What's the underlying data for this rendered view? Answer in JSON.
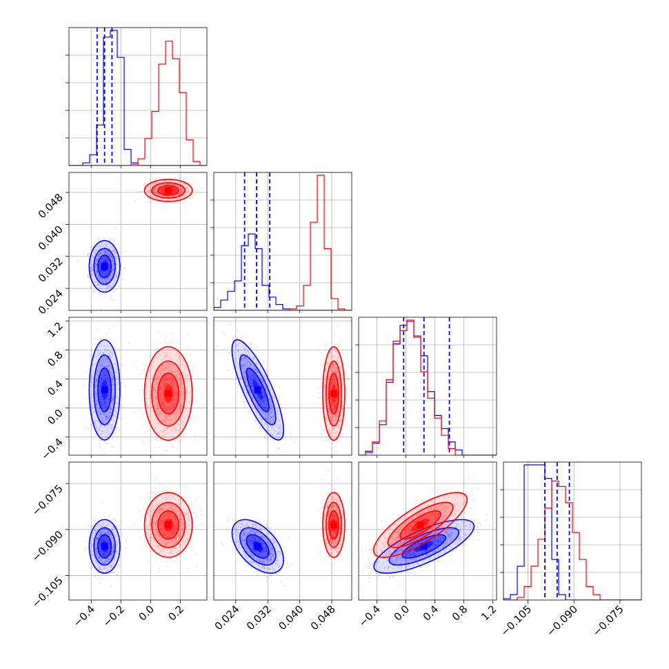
{
  "colors": {
    "series_a": "#0000ff",
    "series_b": "#ff0000",
    "grid": "#b0b0b0"
  },
  "chart_data": {
    "type": "corner",
    "grid": true,
    "parameters": [
      {
        "range": [
          -0.55,
          0.38
        ],
        "ticks": [
          -0.4,
          -0.2,
          0.0,
          0.2
        ],
        "tick_labels": [
          "−0.4",
          "−0.2",
          "0.0",
          "0.2"
        ]
      },
      {
        "range": [
          0.0185,
          0.053
        ],
        "ticks": [
          0.024,
          0.032,
          0.04,
          0.048
        ],
        "tick_labels": [
          "0.024",
          "0.032",
          "0.040",
          "0.048"
        ]
      },
      {
        "range": [
          -0.65,
          1.25
        ],
        "ticks": [
          -0.4,
          0.0,
          0.4,
          0.8,
          1.2
        ],
        "tick_labels": [
          "−0.4",
          "0.0",
          "0.4",
          "0.8",
          "1.2"
        ]
      },
      {
        "range": [
          -0.113,
          -0.068
        ],
        "ticks": [
          -0.105,
          -0.09,
          -0.075
        ],
        "tick_labels": [
          "−0.105",
          "−0.090",
          "−0.075"
        ]
      }
    ],
    "series": [
      {
        "color": "#0000ff",
        "mean": [
          -0.31,
          0.0295,
          0.25,
          -0.0955
        ],
        "std": [
          0.045,
          0.0028,
          0.3,
          0.0038
        ],
        "quantiles": [
          [
            -0.36,
            -0.31,
            -0.26
          ],
          [
            0.0262,
            0.0292,
            0.0325
          ],
          [
            -0.03,
            0.25,
            0.6
          ],
          [
            -0.0995,
            -0.0955,
            -0.0915
          ]
        ],
        "correlations": {
          "0-1": 0.0,
          "0-2": 0.0,
          "0-3": 0.0,
          "1-2": -0.8,
          "1-3": -0.5,
          "2-3": 0.75
        }
      },
      {
        "color": "#ff0000",
        "mean": [
          0.12,
          0.0485,
          0.2,
          -0.0885
        ],
        "std": [
          0.07,
          0.0012,
          0.28,
          0.0046
        ],
        "correlations": {
          "0-1": 0.0,
          "0-2": 0.0,
          "0-3": 0.0,
          "1-2": 0.0,
          "1-3": 0.0,
          "2-3": 0.78
        }
      }
    ],
    "histograms": [
      {
        "param": 0,
        "series": [
          {
            "color": "#0000ff",
            "counts": [
              0,
              0,
              2,
              8,
              30,
              95,
              100,
              80,
              12,
              2,
              0,
              0,
              0,
              0,
              0,
              0,
              0,
              0,
              0,
              0
            ]
          },
          {
            "color": "#ff0000",
            "counts": [
              0,
              0,
              0,
              0,
              0,
              0,
              0,
              0,
              0,
              1,
              5,
              20,
              40,
              75,
              92,
              79,
              54,
              19,
              3,
              0
            ]
          }
        ]
      },
      {
        "param": 1,
        "series": [
          {
            "color": "#0000ff",
            "counts": [
              2,
              7,
              13,
              20,
              44,
              52,
              42,
              17,
              9,
              4,
              1,
              0,
              0,
              0,
              0,
              0,
              0,
              0,
              0,
              0
            ]
          },
          {
            "color": "#ff0000",
            "counts": [
              0,
              0,
              0,
              0,
              0,
              0,
              0,
              0,
              0,
              0,
              0,
              1,
              3,
              17,
              60,
              92,
              42,
              8,
              1,
              0
            ]
          }
        ]
      },
      {
        "param": 2,
        "series": [
          {
            "color": "#0000ff",
            "counts": [
              0,
              3,
              9,
              23,
              55,
              84,
              98,
              101,
              90,
              75,
              48,
              30,
              20,
              10,
              4,
              0,
              0,
              0,
              0,
              0
            ]
          },
          {
            "color": "#ff0000",
            "counts": [
              0,
              2,
              10,
              26,
              57,
              86,
              94,
              102,
              89,
              63,
              43,
              28,
              15,
              5,
              0,
              0,
              0,
              0,
              0,
              0
            ]
          }
        ]
      },
      {
        "param": 3,
        "series": [
          {
            "color": "#0000ff",
            "counts": [
              1,
              4,
              25,
              100,
              100,
              100,
              90,
              30,
              4,
              0,
              0,
              0,
              0,
              0,
              0,
              0,
              0,
              0,
              0,
              0
            ]
          },
          {
            "color": "#ff0000",
            "counts": [
              0,
              0,
              2,
              10,
              25,
              45,
              68,
              88,
              84,
              72,
              50,
              30,
              10,
              4,
              0,
              0,
              0,
              0,
              0,
              0
            ]
          }
        ]
      }
    ]
  }
}
